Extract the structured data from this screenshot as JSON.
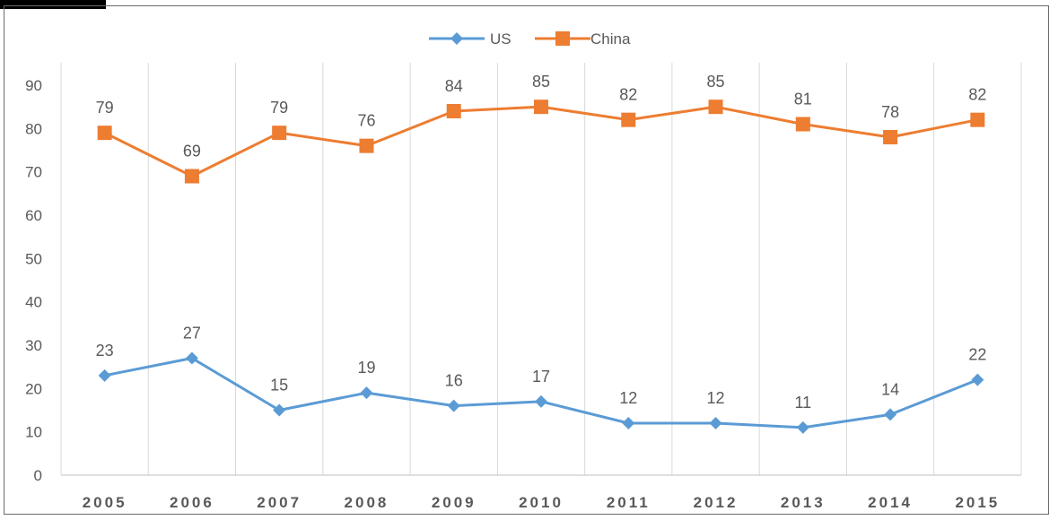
{
  "chart_data": {
    "type": "line",
    "title": "",
    "xlabel": "",
    "ylabel": "",
    "categories": [
      "2005",
      "2006",
      "2007",
      "2008",
      "2009",
      "2010",
      "2011",
      "2012",
      "2013",
      "2014",
      "2015"
    ],
    "ylim": [
      0,
      90
    ],
    "yticks": [
      0,
      10,
      20,
      30,
      40,
      50,
      60,
      70,
      80,
      90
    ],
    "grid": "vertical",
    "legend_position": "top-center",
    "series": [
      {
        "name": "US",
        "color": "#5b9bd5",
        "marker": "diamond",
        "values": [
          23,
          27,
          15,
          19,
          16,
          17,
          12,
          12,
          11,
          14,
          22
        ]
      },
      {
        "name": "China",
        "color": "#ed7d31",
        "marker": "square",
        "values": [
          79,
          69,
          79,
          76,
          84,
          85,
          82,
          85,
          81,
          78,
          82
        ]
      }
    ]
  }
}
